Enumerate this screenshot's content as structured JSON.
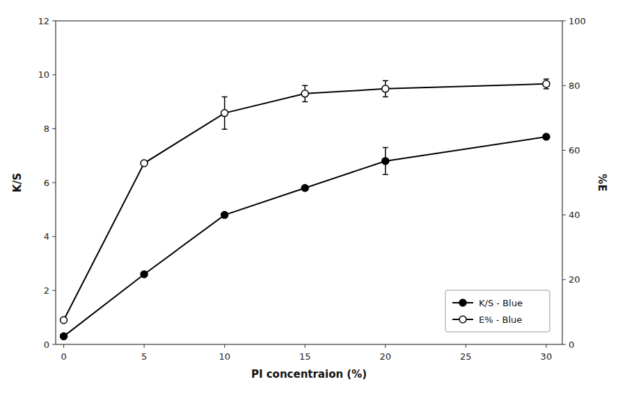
{
  "chart_data": {
    "type": "line",
    "xlabel": "PI concentraion (%)",
    "ylabel": "K/S",
    "y2label": "%E",
    "x": [
      0,
      5,
      10,
      15,
      20,
      30
    ],
    "xlim": [
      -0.5,
      31
    ],
    "xticks": [
      0,
      5,
      10,
      15,
      20,
      25,
      30
    ],
    "ylim": [
      0,
      12
    ],
    "yticks": [
      0,
      2,
      4,
      6,
      8,
      10,
      12
    ],
    "y2lim": [
      0,
      100
    ],
    "y2ticks": [
      0,
      20,
      40,
      60,
      80,
      100
    ],
    "grid": false,
    "legend": "lower right",
    "series": [
      {
        "name": "K/S - Blue",
        "color": "black",
        "marker": "circle",
        "line_style": "solid",
        "values": [
          0.3,
          2.6,
          4.8,
          5.8,
          6.8,
          7.7
        ],
        "errors": [
          0.0,
          0.0,
          0.0,
          0.0,
          0.5,
          0.0
        ]
      },
      {
        "name": "E% - Blue",
        "color": "black",
        "marker": "open-circle",
        "line_style": "solid",
        "axis": "y2",
        "values": [
          7.5,
          56.0,
          71.5,
          77.5,
          79.0,
          80.5
        ],
        "errors": [
          0.0,
          0.0,
          5.0,
          2.5,
          2.5,
          1.5
        ]
      }
    ]
  }
}
